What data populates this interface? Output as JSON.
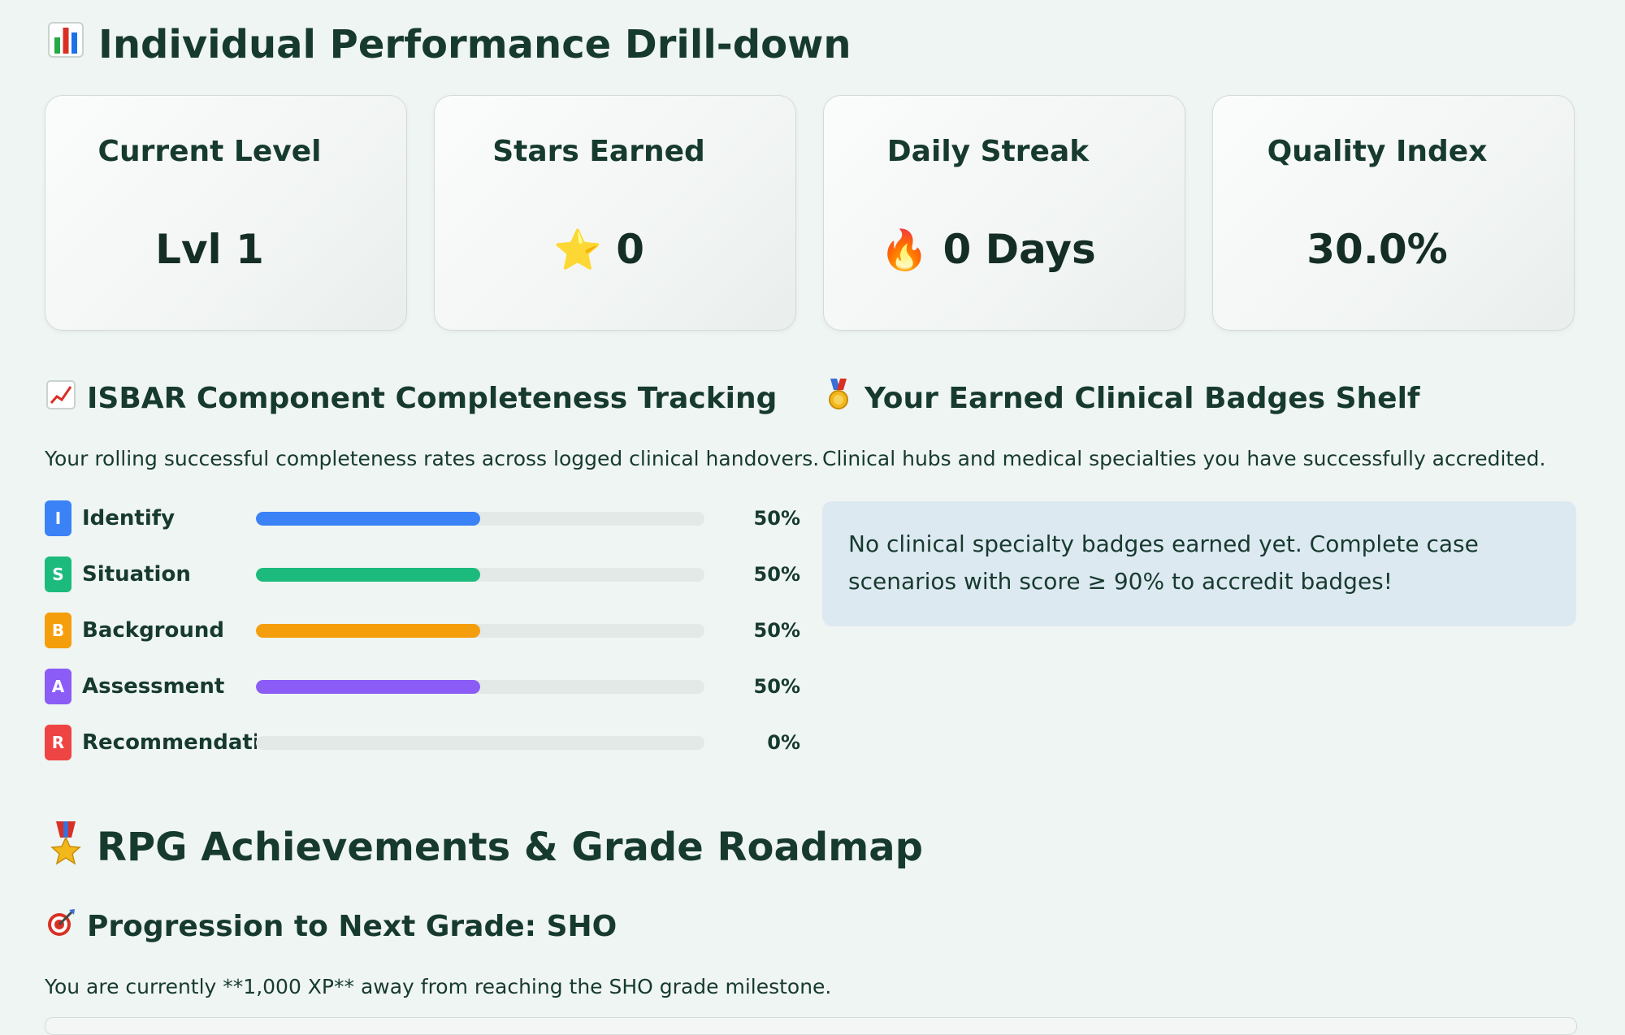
{
  "header": {
    "icon": "bar-chart-icon",
    "title": "Individual Performance Drill-down"
  },
  "metrics": [
    {
      "label": "Current Level",
      "icon": "",
      "value": "Lvl 1"
    },
    {
      "label": "Stars Earned",
      "icon": "⭐",
      "icon_name": "star-icon",
      "value": "0"
    },
    {
      "label": "Daily Streak",
      "icon": "🔥",
      "icon_name": "fire-icon",
      "value": "0 Days"
    },
    {
      "label": "Quality Index",
      "icon": "",
      "value": "30.0%"
    }
  ],
  "isbar": {
    "icon": "chart-increasing-icon",
    "title": "ISBAR Component Completeness Tracking",
    "subtitle": "Your rolling successful completeness rates across logged clinical handovers.",
    "components": [
      {
        "letter": "I",
        "name": "Identify",
        "percent_label": "50%",
        "fraction": 0.5,
        "color": "#3b82f6"
      },
      {
        "letter": "S",
        "name": "Situation",
        "percent_label": "50%",
        "fraction": 0.5,
        "color": "#1dba7e"
      },
      {
        "letter": "B",
        "name": "Background",
        "percent_label": "50%",
        "fraction": 0.5,
        "color": "#f59e0b"
      },
      {
        "letter": "A",
        "name": "Assessment",
        "percent_label": "50%",
        "fraction": 0.5,
        "color": "#8b5cf6"
      },
      {
        "letter": "R",
        "name": "Recommendation",
        "percent_label": "0%",
        "fraction": 0.0,
        "color": "#ef4444"
      }
    ]
  },
  "badges_shelf": {
    "icon": "medal-icon",
    "title": "Your Earned Clinical Badges Shelf",
    "subtitle": "Clinical hubs and medical specialties you have successfully accredited.",
    "empty_message": "No clinical specialty badges earned yet. Complete case scenarios with score ≥ 90% to accredit badges!"
  },
  "rpg": {
    "icon": "military-medal-icon",
    "title": "RPG Achievements & Grade Roadmap",
    "progression": {
      "icon": "target-icon",
      "title": "Progression to Next Grade: SHO",
      "text": "You are currently **1,000 XP** away from reaching the SHO grade milestone."
    }
  },
  "colors": {
    "background": "#eff5f2",
    "text": "#173a2f",
    "info_box": "#dde9f1"
  }
}
